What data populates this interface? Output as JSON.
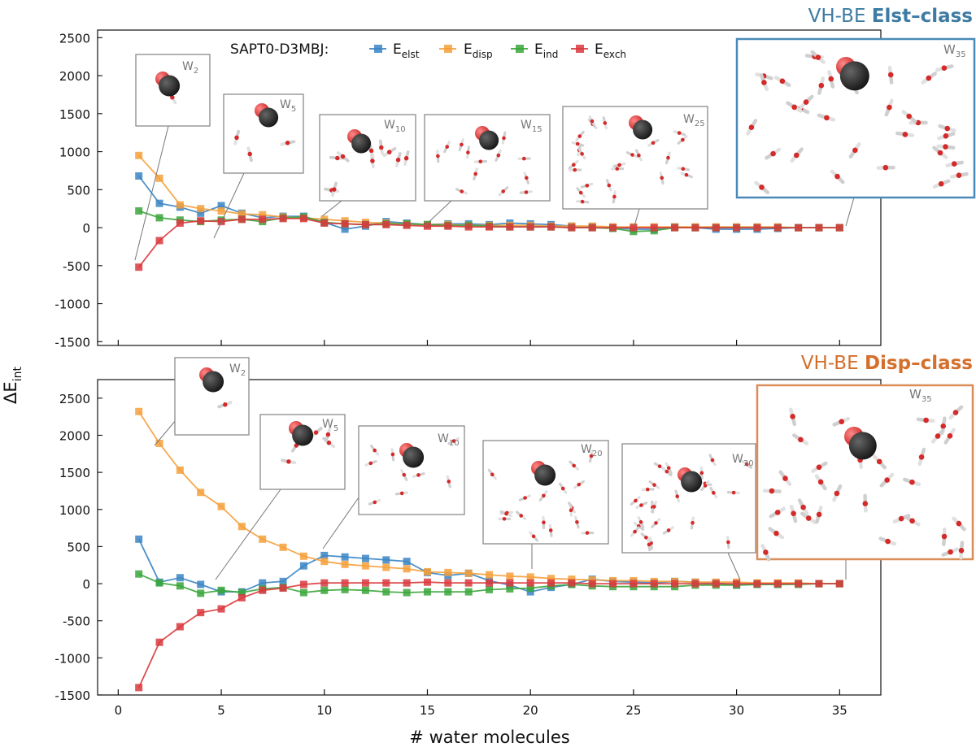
{
  "figure": {
    "y_axis_label": "ΔE",
    "y_axis_label_sub": "int",
    "x_axis_label": "# water molecules",
    "legend_title": "SAPT0-D3MBJ:",
    "legend": [
      {
        "key": "elst",
        "base": "E",
        "sub": "elst",
        "color": "#3b85c4"
      },
      {
        "key": "disp",
        "base": "E",
        "sub": "disp",
        "color": "#f5a03b"
      },
      {
        "key": "ind",
        "base": "E",
        "sub": "ind",
        "color": "#3ba63b"
      },
      {
        "key": "exch",
        "base": "E",
        "sub": "exch",
        "color": "#d93a3e"
      }
    ]
  },
  "panels": {
    "top": {
      "title_prefix": "VH-BE ",
      "title_bold": "Elst–class",
      "title_color": "#3e7ba3",
      "inset_labels": [
        "W",
        "W",
        "W",
        "W",
        "W",
        "W"
      ],
      "inset_subs": [
        "2",
        "5",
        "10",
        "15",
        "25",
        "35"
      ]
    },
    "bottom": {
      "title_prefix": "VH-BE ",
      "title_bold": "Disp–class",
      "title_color": "#d46f2c",
      "inset_labels": [
        "W",
        "W",
        "W",
        "W",
        "W",
        "W"
      ],
      "inset_subs": [
        "2",
        "5",
        "10",
        "20",
        "30",
        "35"
      ]
    }
  },
  "chart_data": [
    {
      "type": "line",
      "panel": "top",
      "title": "VH-BE Elst–class",
      "xlabel": "# water molecules",
      "ylabel": "ΔE_int",
      "xlim": [
        -1,
        37
      ],
      "ylim": [
        -1550,
        2600
      ],
      "xticks": [
        0,
        5,
        10,
        15,
        20,
        25,
        30,
        35
      ],
      "yticks": [
        -1500,
        -1000,
        -500,
        0,
        500,
        1000,
        1500,
        2000,
        2500
      ],
      "x": [
        1,
        2,
        3,
        4,
        5,
        6,
        7,
        8,
        9,
        10,
        11,
        12,
        13,
        14,
        15,
        16,
        17,
        18,
        19,
        20,
        21,
        22,
        23,
        24,
        25,
        26,
        27,
        28,
        29,
        30,
        31,
        32,
        33,
        34,
        35
      ],
      "series": [
        {
          "name": "E_elst",
          "color": "#3b85c4",
          "values": [
            680,
            320,
            270,
            190,
            290,
            190,
            130,
            150,
            150,
            70,
            -20,
            20,
            80,
            60,
            40,
            50,
            50,
            40,
            60,
            50,
            40,
            20,
            10,
            0,
            -20,
            -20,
            10,
            0,
            -20,
            -20,
            -20,
            -10,
            0,
            0,
            0
          ]
        },
        {
          "name": "E_disp",
          "color": "#f5a03b",
          "values": [
            950,
            650,
            300,
            250,
            220,
            180,
            170,
            140,
            130,
            110,
            90,
            70,
            60,
            50,
            40,
            40,
            30,
            30,
            30,
            30,
            20,
            20,
            20,
            10,
            10,
            10,
            10,
            10,
            10,
            10,
            10,
            10,
            0,
            0,
            0
          ]
        },
        {
          "name": "E_ind",
          "color": "#3ba63b",
          "values": [
            220,
            130,
            100,
            80,
            100,
            110,
            80,
            130,
            140,
            70,
            50,
            40,
            50,
            50,
            40,
            30,
            30,
            20,
            10,
            10,
            10,
            0,
            0,
            -10,
            -50,
            -40,
            0,
            0,
            0,
            0,
            0,
            0,
            0,
            0,
            0
          ]
        },
        {
          "name": "E_exch",
          "color": "#d93a3e",
          "values": [
            -520,
            -170,
            60,
            90,
            80,
            110,
            110,
            120,
            120,
            60,
            50,
            40,
            40,
            30,
            20,
            20,
            10,
            10,
            10,
            10,
            10,
            0,
            0,
            0,
            0,
            0,
            0,
            0,
            0,
            0,
            0,
            0,
            0,
            0,
            0
          ]
        }
      ]
    },
    {
      "type": "line",
      "panel": "bottom",
      "title": "VH-BE Disp–class",
      "xlabel": "# water molecules",
      "ylabel": "ΔE_int",
      "xlim": [
        -1,
        37
      ],
      "ylim": [
        -1500,
        2750
      ],
      "xticks": [
        0,
        5,
        10,
        15,
        20,
        25,
        30,
        35
      ],
      "yticks": [
        -1500,
        -1000,
        -500,
        0,
        500,
        1000,
        1500,
        2000,
        2500
      ],
      "x": [
        1,
        2,
        3,
        4,
        5,
        6,
        7,
        8,
        9,
        10,
        11,
        12,
        13,
        14,
        15,
        16,
        17,
        18,
        19,
        20,
        21,
        22,
        23,
        24,
        25,
        26,
        27,
        28,
        29,
        30,
        31,
        32,
        33,
        34,
        35
      ],
      "series": [
        {
          "name": "E_elst",
          "color": "#3b85c4",
          "values": [
            600,
            20,
            80,
            -10,
            -110,
            -110,
            10,
            30,
            240,
            380,
            360,
            340,
            320,
            300,
            150,
            110,
            140,
            40,
            -20,
            -110,
            -50,
            -10,
            60,
            30,
            20,
            10,
            30,
            20,
            10,
            -20,
            -10,
            -10,
            0,
            0,
            0
          ]
        },
        {
          "name": "E_disp",
          "color": "#f5a03b",
          "values": [
            2320,
            1890,
            1530,
            1230,
            1040,
            770,
            600,
            490,
            370,
            300,
            260,
            240,
            220,
            200,
            160,
            150,
            140,
            120,
            100,
            90,
            70,
            60,
            50,
            40,
            40,
            30,
            30,
            20,
            20,
            20,
            10,
            10,
            10,
            0,
            0
          ]
        },
        {
          "name": "E_ind",
          "color": "#3ba63b",
          "values": [
            130,
            10,
            -30,
            -130,
            -90,
            -120,
            -70,
            -50,
            -120,
            -90,
            -80,
            -90,
            -110,
            -120,
            -110,
            -110,
            -110,
            -80,
            -70,
            -60,
            -30,
            -10,
            -30,
            -40,
            -40,
            -40,
            -40,
            -20,
            -20,
            -20,
            -10,
            -10,
            -10,
            0,
            0
          ]
        },
        {
          "name": "E_exch",
          "color": "#d93a3e",
          "values": [
            -1400,
            -790,
            -580,
            -390,
            -340,
            -190,
            -90,
            -60,
            -10,
            10,
            10,
            10,
            10,
            10,
            20,
            10,
            10,
            10,
            10,
            10,
            10,
            10,
            0,
            0,
            0,
            0,
            0,
            0,
            0,
            0,
            0,
            0,
            0,
            0,
            0
          ]
        }
      ]
    }
  ]
}
